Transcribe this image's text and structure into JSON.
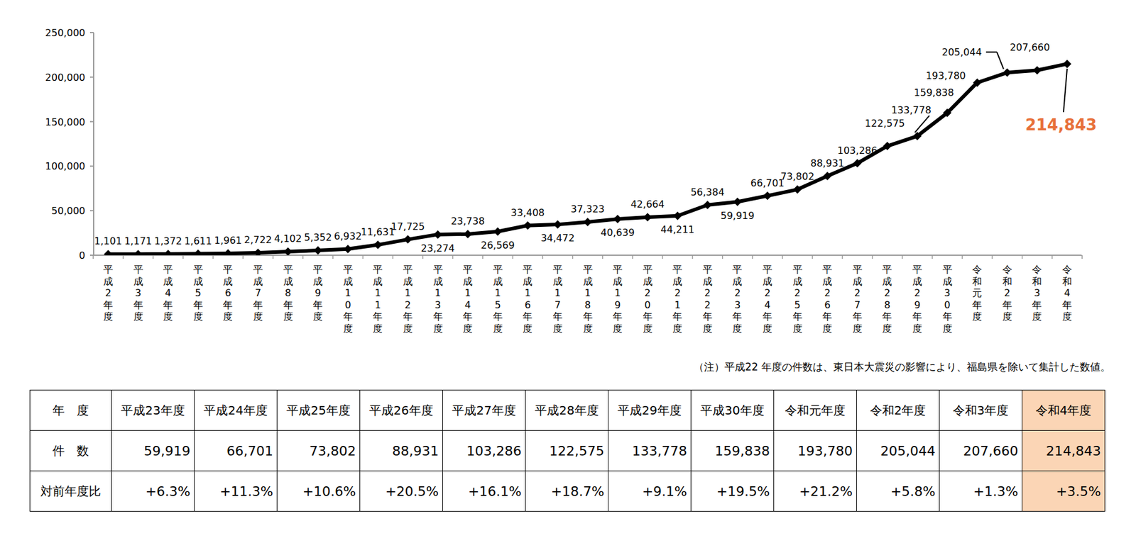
{
  "chart_data": {
    "type": "line",
    "categories": [
      "平成2年度",
      "平成3年度",
      "平成4年度",
      "平成5年度",
      "平成6年度",
      "平成7年度",
      "平成8年度",
      "平成9年度",
      "平成10年度",
      "平成11年度",
      "平成12年度",
      "平成13年度",
      "平成14年度",
      "平成15年度",
      "平成16年度",
      "平成17年度",
      "平成18年度",
      "平成19年度",
      "平成20年度",
      "平成21年度",
      "平成22年度",
      "平成23年度",
      "平成24年度",
      "平成25年度",
      "平成26年度",
      "平成27年度",
      "平成28年度",
      "平成29年度",
      "平成30年度",
      "令和元年度",
      "令和2年度",
      "令和3年度",
      "令和4年度"
    ],
    "values": [
      1101,
      1171,
      1372,
      1611,
      1961,
      2722,
      4102,
      5352,
      6932,
      11631,
      17725,
      23274,
      23738,
      26569,
      33408,
      34472,
      37323,
      40639,
      42664,
      44211,
      56384,
      59919,
      66701,
      73802,
      88931,
      103286,
      122575,
      133778,
      159838,
      193780,
      205044,
      207660,
      214843
    ],
    "value_labels": [
      "1,101",
      "1,171",
      "1,372",
      "1,611",
      "1,961",
      "2,722",
      "4,102",
      "5,352",
      "6,932",
      "11,631",
      "17,725",
      "23,274",
      "23,738",
      "26,569",
      "33,408",
      "34,472",
      "37,323",
      "40,639",
      "42,664",
      "44,211",
      "56,384",
      "59,919",
      "66,701",
      "73,802",
      "88,931",
      "103,286",
      "122,575",
      "133,778",
      "159,838",
      "193,780",
      "205,044",
      "207,660",
      "214,843"
    ],
    "color": "#000000",
    "marker": "diamond",
    "data_labels": true,
    "grid": false,
    "ylim": [
      0,
      250000
    ],
    "yticks": [
      0,
      {
        "value": 50000,
        "label": "50,000"
      },
      {
        "value": 100000,
        "label": "100,000"
      },
      {
        "value": 150000,
        "label": "150,000"
      },
      {
        "value": 200000,
        "label": "200,000"
      },
      {
        "value": 250000,
        "label": "250,000"
      }
    ],
    "annotations": [
      "（注）平成22 年度の件数は、東日本大震災の影響により、福島県を除いて集計した数値。"
    ]
  },
  "table": {
    "rows": [
      [
        "年　度",
        "平成23年度",
        "平成24年度",
        "平成25年度",
        "平成26年度",
        "平成27年度",
        "平成28年度",
        "平成29年度",
        "平成30年度",
        "令和元年度",
        "令和2年度",
        "令和3年度",
        "令和4年度"
      ],
      [
        "件　数",
        "59,919",
        "66,701",
        "73,802",
        "88,931",
        "103,286",
        "122,575",
        "133,778",
        "159,838",
        "193,780",
        "205,044",
        "207,660",
        "214,843"
      ],
      [
        "対前年度比",
        "+6.3%",
        "+11.3%",
        "+10.6%",
        "+20.5%",
        "+16.1%",
        "+18.7%",
        "+9.1%",
        "+19.5%",
        "+21.2%",
        "+5.8%",
        "+1.3%",
        "+3.5%"
      ]
    ]
  }
}
